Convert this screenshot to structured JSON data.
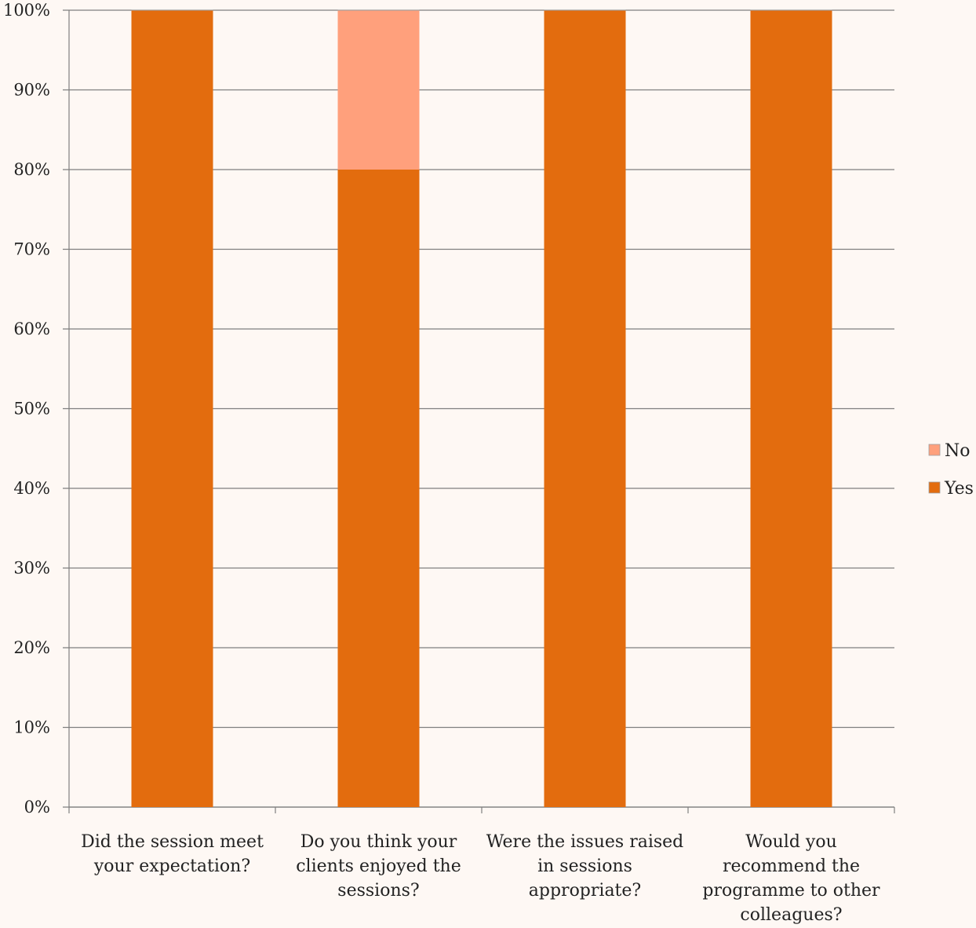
{
  "chart_data": {
    "type": "bar",
    "stacked": true,
    "percent_stacked": true,
    "title": "",
    "xlabel": "",
    "ylabel": "",
    "ylim": [
      0,
      100
    ],
    "y_ticks": [
      "0%",
      "10%",
      "20%",
      "30%",
      "40%",
      "50%",
      "60%",
      "70%",
      "80%",
      "90%",
      "100%"
    ],
    "grid": true,
    "legend_position": "right",
    "categories": [
      [
        "Did the session meet",
        "your expectation?"
      ],
      [
        "Do you think your",
        "clients enjoyed the",
        "sessions?"
      ],
      [
        "Were the issues raised",
        "in sessions",
        "appropriate?"
      ],
      [
        "Would you",
        "recommend the",
        "programme to other",
        "colleagues?"
      ]
    ],
    "series": [
      {
        "name": "Yes",
        "color": "#e36c0e",
        "values": [
          100,
          80,
          100,
          100
        ]
      },
      {
        "name": "No",
        "color": "#ffa07c",
        "values": [
          0,
          20,
          0,
          0
        ]
      }
    ],
    "legend": [
      {
        "label": "No",
        "color": "#ffa07c"
      },
      {
        "label": "Yes",
        "color": "#e36c0e"
      }
    ]
  }
}
